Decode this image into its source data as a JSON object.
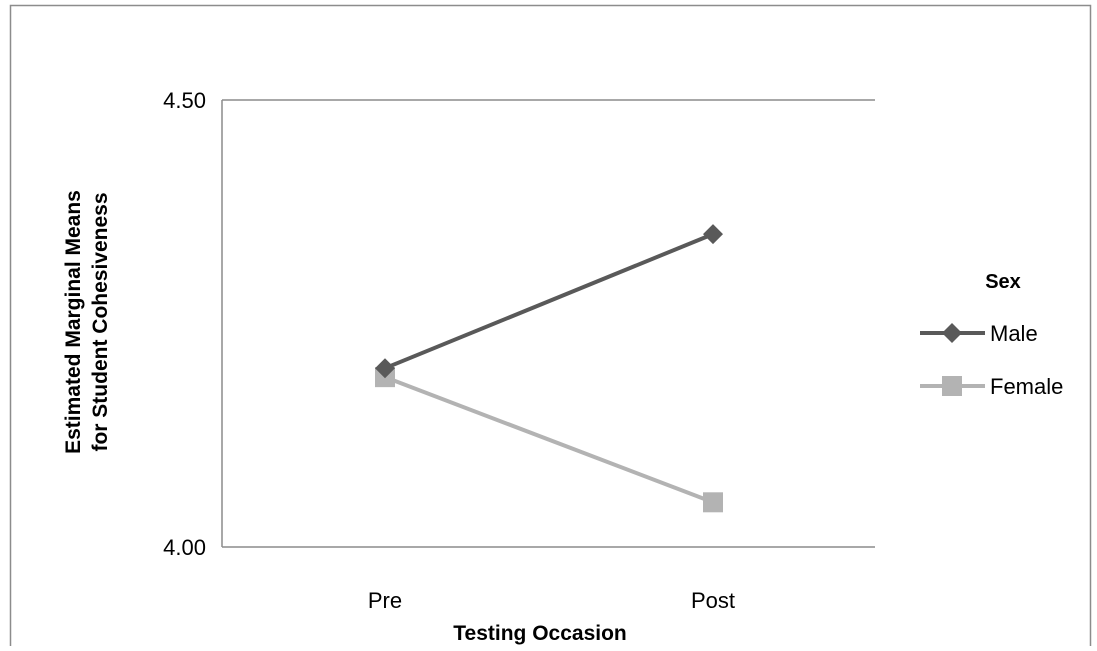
{
  "chart_data": {
    "type": "line",
    "categories": [
      "Pre",
      "Post"
    ],
    "series": [
      {
        "name": "Male",
        "values": [
          4.2,
          4.35
        ],
        "color": "#595959",
        "marker": "diamond"
      },
      {
        "name": "Female",
        "values": [
          4.19,
          4.05
        ],
        "color": "#b3b3b3",
        "marker": "square"
      }
    ],
    "title": "",
    "xlabel": "Testing Occasion",
    "ylabel_lines": [
      "Estimated Marginal Means",
      "for Student Cohesiveness"
    ],
    "ylim": [
      4.0,
      4.5
    ],
    "yticks": [
      "4.00",
      "4.50"
    ],
    "grid": false,
    "legend": {
      "title": "Sex",
      "position": "right"
    }
  }
}
